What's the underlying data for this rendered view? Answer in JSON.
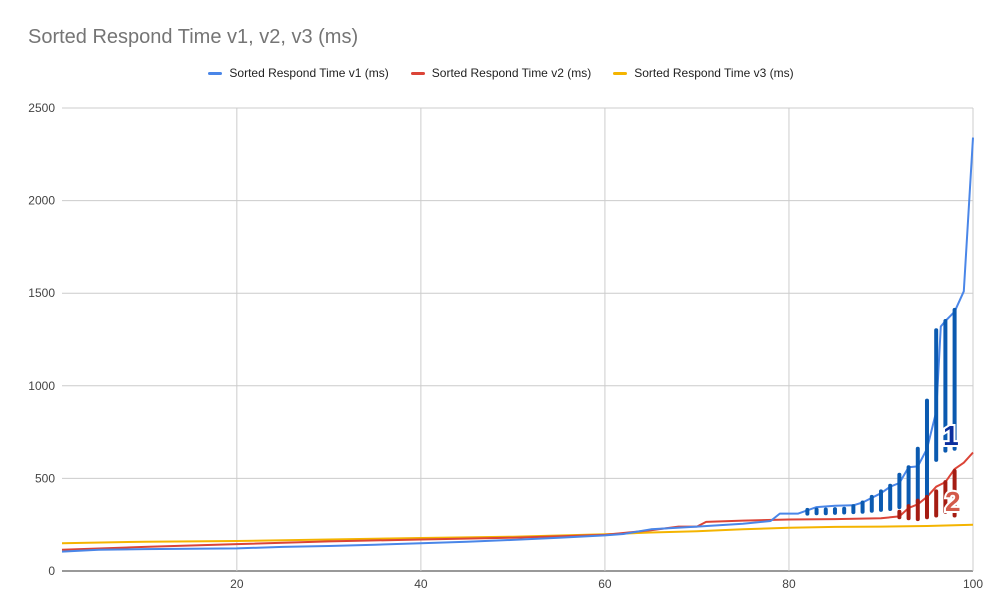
{
  "chart_data": {
    "type": "line",
    "title": "Sorted Respond Time v1, v2, v3 (ms)",
    "xlabel": "",
    "ylabel": "",
    "xlim": [
      1,
      100
    ],
    "ylim": [
      0,
      2500
    ],
    "x_ticks": [
      20,
      40,
      60,
      80,
      100
    ],
    "y_ticks": [
      0,
      500,
      1000,
      1500,
      2000,
      2500
    ],
    "grid": true,
    "legend_position": "top",
    "series": [
      {
        "name": "Sorted Respond Time v1 (ms)",
        "color": "#4a86e8",
        "points": [
          [
            1,
            105
          ],
          [
            5,
            115
          ],
          [
            10,
            118
          ],
          [
            15,
            120
          ],
          [
            20,
            122
          ],
          [
            25,
            130
          ],
          [
            30,
            135
          ],
          [
            35,
            142
          ],
          [
            40,
            150
          ],
          [
            45,
            158
          ],
          [
            50,
            168
          ],
          [
            55,
            180
          ],
          [
            60,
            192
          ],
          [
            62,
            200
          ],
          [
            65,
            225
          ],
          [
            70,
            240
          ],
          [
            75,
            255
          ],
          [
            78,
            270
          ],
          [
            79,
            310
          ],
          [
            81,
            310
          ],
          [
            83,
            345
          ],
          [
            85,
            352
          ],
          [
            87,
            355
          ],
          [
            88,
            370
          ],
          [
            90,
            420
          ],
          [
            91,
            455
          ],
          [
            92,
            475
          ],
          [
            93,
            560
          ],
          [
            94,
            565
          ],
          [
            95,
            660
          ],
          [
            96,
            860
          ],
          [
            96.5,
            1320
          ],
          [
            97,
            1350
          ],
          [
            98,
            1400
          ],
          [
            99,
            1510
          ],
          [
            100,
            2340
          ]
        ]
      },
      {
        "name": "Sorted Respond Time v2 (ms)",
        "color": "#db4437",
        "points": [
          [
            1,
            115
          ],
          [
            10,
            130
          ],
          [
            20,
            145
          ],
          [
            30,
            160
          ],
          [
            40,
            170
          ],
          [
            50,
            180
          ],
          [
            60,
            195
          ],
          [
            62,
            205
          ],
          [
            65,
            220
          ],
          [
            68,
            240
          ],
          [
            70,
            240
          ],
          [
            71,
            265
          ],
          [
            75,
            272
          ],
          [
            80,
            278
          ],
          [
            85,
            280
          ],
          [
            90,
            285
          ],
          [
            92,
            295
          ],
          [
            93,
            340
          ],
          [
            94,
            360
          ],
          [
            95,
            400
          ],
          [
            96,
            455
          ],
          [
            97,
            480
          ],
          [
            98,
            550
          ],
          [
            99,
            585
          ],
          [
            100,
            640
          ]
        ]
      },
      {
        "name": "Sorted Respond Time v3 (ms)",
        "color": "#f4b400",
        "points": [
          [
            1,
            150
          ],
          [
            10,
            158
          ],
          [
            20,
            162
          ],
          [
            30,
            170
          ],
          [
            40,
            178
          ],
          [
            50,
            185
          ],
          [
            60,
            198
          ],
          [
            65,
            208
          ],
          [
            70,
            215
          ],
          [
            75,
            225
          ],
          [
            80,
            233
          ],
          [
            85,
            238
          ],
          [
            90,
            240
          ],
          [
            95,
            243
          ],
          [
            100,
            250
          ]
        ]
      }
    ],
    "annotations": [
      {
        "label": "1",
        "color": "#0b5ab0",
        "bars": [
          [
            82,
            310,
            330
          ],
          [
            83,
            312,
            332
          ],
          [
            84,
            312,
            332
          ],
          [
            85,
            314,
            334
          ],
          [
            86,
            316,
            336
          ],
          [
            87,
            318,
            350
          ],
          [
            88,
            320,
            370
          ],
          [
            89,
            325,
            400
          ],
          [
            90,
            330,
            430
          ],
          [
            91,
            335,
            460
          ],
          [
            92,
            345,
            520
          ],
          [
            93,
            355,
            560
          ],
          [
            94,
            370,
            660
          ],
          [
            95,
            400,
            920
          ],
          [
            96,
            600,
            1300
          ],
          [
            97,
            650,
            1350
          ],
          [
            98,
            660,
            1410
          ]
        ]
      },
      {
        "label": "2",
        "color": "#a51c12",
        "bars": [
          [
            92,
            290,
            320
          ],
          [
            93,
            285,
            350
          ],
          [
            94,
            280,
            380
          ],
          [
            95,
            290,
            400
          ],
          [
            96,
            300,
            430
          ],
          [
            97,
            320,
            480
          ],
          [
            98,
            300,
            540
          ]
        ]
      }
    ]
  }
}
